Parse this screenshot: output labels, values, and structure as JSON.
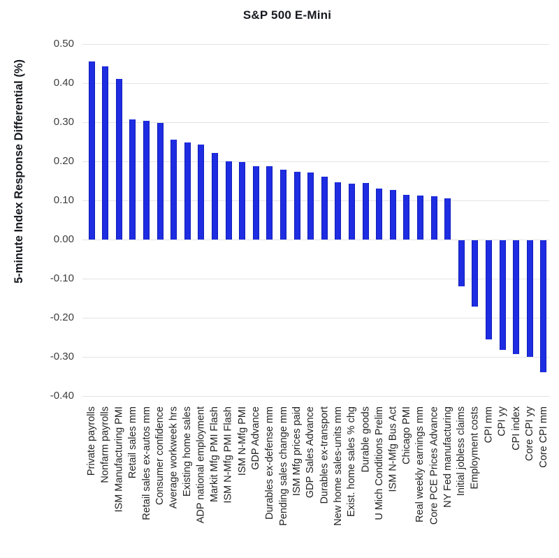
{
  "chart_data": {
    "type": "bar",
    "title": "S&P 500 E-Mini",
    "xlabel": "",
    "ylabel": "5-minute Index Response Differential (%)",
    "ylim": [
      -0.4,
      0.5
    ],
    "ytick_step": 0.1,
    "ytick_labels": [
      "0.50",
      "0.40",
      "0.30",
      "0.20",
      "0.10",
      "0.00",
      "-0.10",
      "-0.20",
      "-0.30",
      "-0.40"
    ],
    "grid": true,
    "legend_position": "none",
    "bar_color": "#1e2de2",
    "categories": [
      "Private payrolls",
      "Nonfarm payrolls",
      "ISM Manufacturing PMI",
      "Retail sales mm",
      "Retail sales ex-autos mm",
      "Consumer confidence",
      "Average workweek hrs",
      "Existing home sales",
      "ADP national employment",
      "Markit Mfg PMI Flash",
      "ISM N-Mfg PMI Flash",
      "ISM N-Mfg PMI",
      "GDP Advance",
      "Durables ex-defense mm",
      "Pending sales change mm",
      "ISM Mfg prices paid",
      "GDP Sales Advance",
      "Durables ex-transport",
      "New home sales-units mm",
      "Exist. home sales % chg",
      "Durable goods",
      "U Mich Conditions Prelim",
      "ISM N-Mfg Bus Act",
      "Chicago PMI",
      "Real weekly earnings mm",
      "Core PCE Prices Advance",
      "NY Fed manufacturing",
      "Initial jobless claims",
      "Employment costs",
      "CPI mm",
      "CPI yy",
      "CPI index",
      "Core CPI yy",
      "Core CPI mm"
    ],
    "values": [
      0.455,
      0.443,
      0.411,
      0.308,
      0.304,
      0.299,
      0.256,
      0.248,
      0.242,
      0.221,
      0.2,
      0.198,
      0.188,
      0.187,
      0.178,
      0.173,
      0.171,
      0.161,
      0.146,
      0.143,
      0.144,
      0.131,
      0.127,
      0.114,
      0.112,
      0.11,
      0.106,
      -0.118,
      -0.17,
      -0.254,
      -0.281,
      -0.291,
      -0.299,
      -0.337
    ]
  }
}
